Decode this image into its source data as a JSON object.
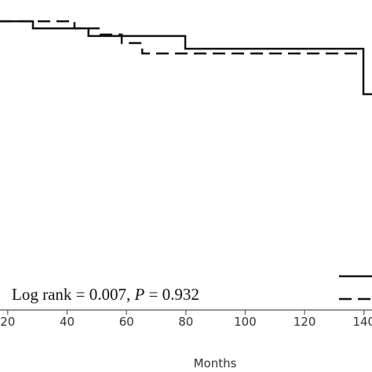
{
  "chart_data": {
    "type": "step",
    "x_label": "Months",
    "annotation": [
      "Log rank = 0.007, ",
      "P",
      " = 0.932"
    ],
    "xlim": [
      17.4,
      142.7
    ],
    "ylim": [
      0,
      1.05
    ],
    "xticks": [
      20,
      40,
      60,
      80,
      100,
      120,
      140
    ],
    "series": [
      {
        "color": "#111111",
        "style": "solid",
        "x": [
          17.4,
          28.5,
          47.2,
          79.8,
          139.8,
          142.7
        ],
        "values": [
          0.978,
          0.954,
          0.928,
          0.885,
          0.731,
          0.731
        ]
      },
      {
        "color": "#111111",
        "style": "dashed",
        "x": [
          17.4,
          42.5,
          51.3,
          58.4,
          65.3,
          137.9
        ],
        "values": [
          0.978,
          0.954,
          0.933,
          0.904,
          0.869,
          0.869
        ]
      }
    ]
  }
}
